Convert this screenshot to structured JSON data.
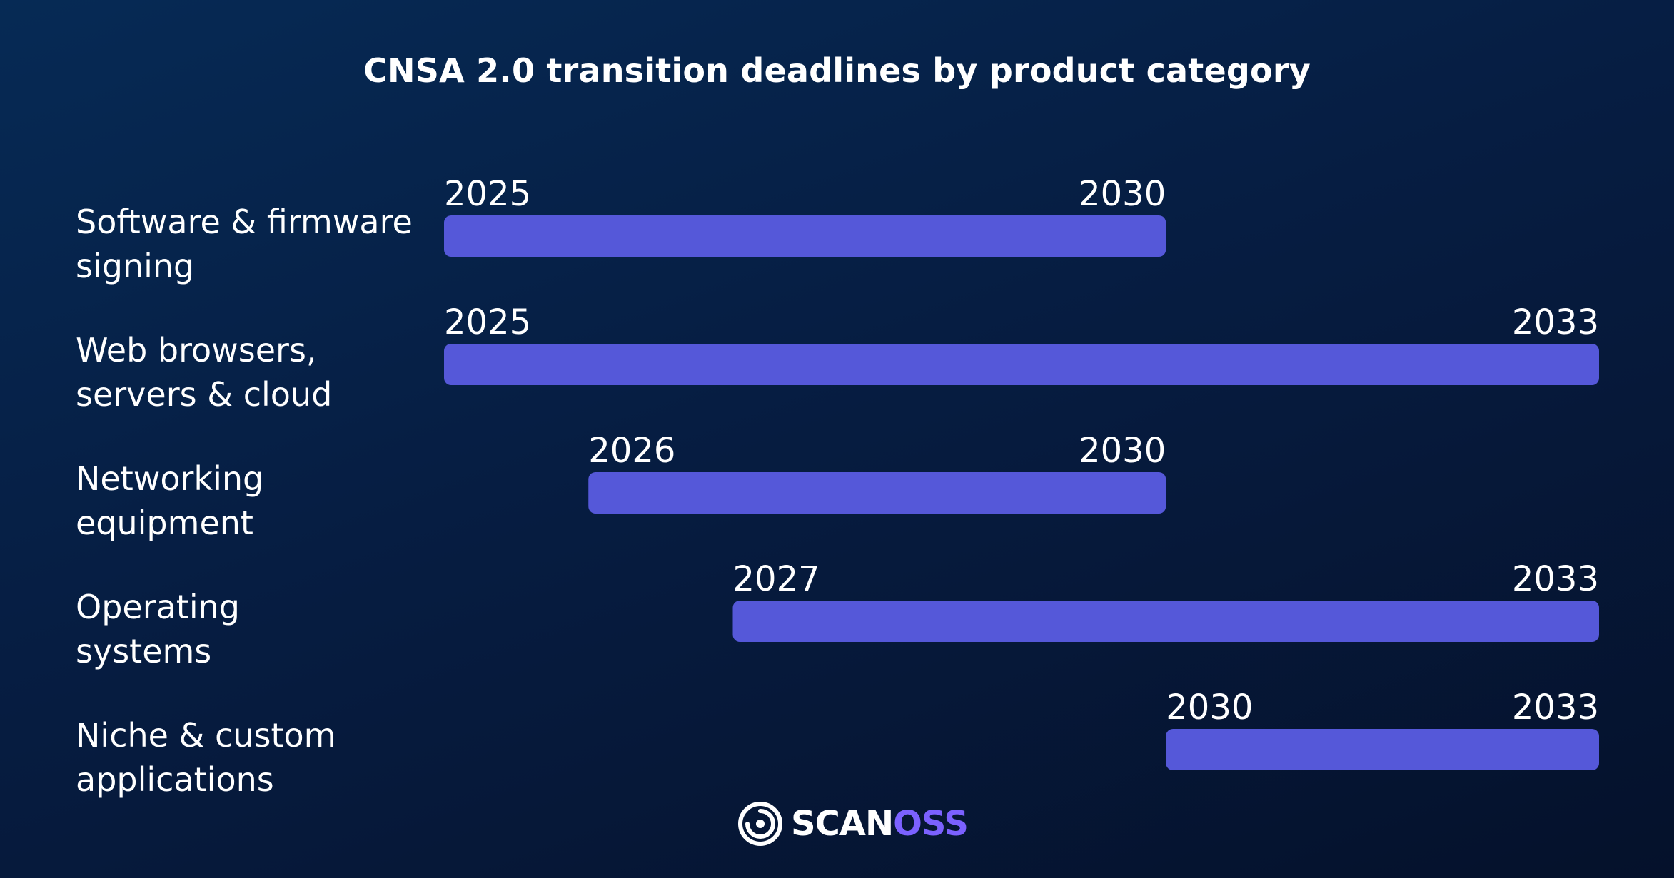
{
  "colors": {
    "bar": "#5558d9",
    "text": "#ffffff",
    "brand_accent": "#7b61ff"
  },
  "chart_data": {
    "type": "bar",
    "orientation": "horizontal-range",
    "title": "CNSA 2.0 transition deadlines by product category",
    "xlim": [
      2025,
      2033
    ],
    "grid": false,
    "categories": [
      [
        "Software & firmware",
        "signing"
      ],
      [
        "Web browsers,",
        "servers & cloud"
      ],
      [
        "Networking",
        "equipment"
      ],
      [
        "Operating",
        "systems"
      ],
      [
        "Niche & custom",
        "applications"
      ]
    ],
    "series": [
      {
        "ranges": [
          {
            "start": 2025,
            "end": 2030
          },
          {
            "start": 2025,
            "end": 2033
          },
          {
            "start": 2026,
            "end": 2030
          },
          {
            "start": 2027,
            "end": 2033
          },
          {
            "start": 2030,
            "end": 2033
          }
        ]
      }
    ]
  },
  "logo": {
    "icon": "scanoss-target-icon",
    "text_part1": "SCAN",
    "text_part2": "OSS"
  }
}
